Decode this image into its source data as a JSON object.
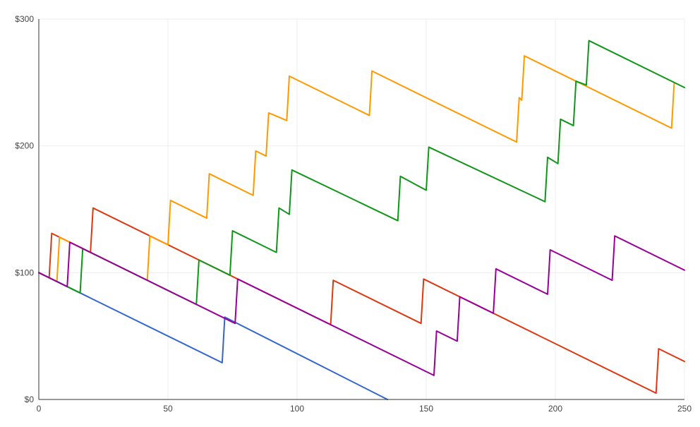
{
  "chart_data": {
    "type": "line",
    "title": "",
    "xlabel": "",
    "ylabel": "",
    "xlim": [
      0,
      250
    ],
    "ylim": [
      0,
      300
    ],
    "x_ticks": [
      0,
      50,
      100,
      150,
      200,
      250
    ],
    "x_tick_labels": [
      "0",
      "50",
      "100",
      "150",
      "200",
      "250"
    ],
    "y_ticks": [
      0,
      100,
      200,
      300
    ],
    "y_tick_labels": [
      "$0",
      "$100",
      "$200",
      "$300"
    ],
    "grid": true,
    "legend": "none",
    "series": [
      {
        "color": "#3366cc",
        "points": [
          [
            0,
            100
          ],
          [
            16,
            84
          ],
          [
            71,
            29
          ],
          [
            72,
            65
          ],
          [
            135,
            0
          ]
        ]
      },
      {
        "color": "#dc3912",
        "points": [
          [
            0,
            100
          ],
          [
            4,
            96
          ],
          [
            5,
            131
          ],
          [
            20,
            116
          ],
          [
            21,
            151
          ],
          [
            113,
            59
          ],
          [
            114,
            94
          ],
          [
            148,
            60
          ],
          [
            149,
            95
          ],
          [
            239,
            5
          ],
          [
            240,
            40
          ],
          [
            250,
            30
          ]
        ]
      },
      {
        "color": "#ff9900",
        "points": [
          [
            0,
            100
          ],
          [
            7,
            93
          ],
          [
            8,
            128
          ],
          [
            42,
            94
          ],
          [
            43,
            129
          ],
          [
            50,
            122
          ],
          [
            51,
            157
          ],
          [
            65,
            143
          ],
          [
            66,
            178
          ],
          [
            83,
            161
          ],
          [
            84,
            196
          ],
          [
            88,
            192
          ],
          [
            89,
            226
          ],
          [
            96,
            220
          ],
          [
            97,
            255
          ],
          [
            128,
            224
          ],
          [
            129,
            259
          ],
          [
            185,
            203
          ],
          [
            186,
            238
          ],
          [
            187,
            236
          ],
          [
            188,
            271
          ],
          [
            245,
            214
          ],
          [
            246,
            249
          ]
        ]
      },
      {
        "color": "#109618",
        "points": [
          [
            0,
            100
          ],
          [
            16,
            84
          ],
          [
            17,
            119
          ],
          [
            61,
            75
          ],
          [
            62,
            110
          ],
          [
            74,
            98
          ],
          [
            75,
            133
          ],
          [
            92,
            116
          ],
          [
            93,
            151
          ],
          [
            97,
            146
          ],
          [
            98,
            181
          ],
          [
            139,
            141
          ],
          [
            140,
            176
          ],
          [
            150,
            165
          ],
          [
            151,
            199
          ],
          [
            196,
            156
          ],
          [
            197,
            191
          ],
          [
            201,
            186
          ],
          [
            202,
            221
          ],
          [
            207,
            216
          ],
          [
            208,
            251
          ],
          [
            212,
            248
          ],
          [
            213,
            283
          ],
          [
            250,
            246
          ]
        ]
      },
      {
        "color": "#990099",
        "points": [
          [
            0,
            100
          ],
          [
            11,
            89
          ],
          [
            12,
            124
          ],
          [
            76,
            60
          ],
          [
            77,
            95
          ],
          [
            153,
            19
          ],
          [
            154,
            54
          ],
          [
            162,
            46
          ],
          [
            163,
            81
          ],
          [
            176,
            68
          ],
          [
            177,
            103
          ],
          [
            197,
            83
          ],
          [
            198,
            118
          ],
          [
            222,
            94
          ],
          [
            223,
            129
          ],
          [
            250,
            102
          ]
        ]
      }
    ]
  }
}
